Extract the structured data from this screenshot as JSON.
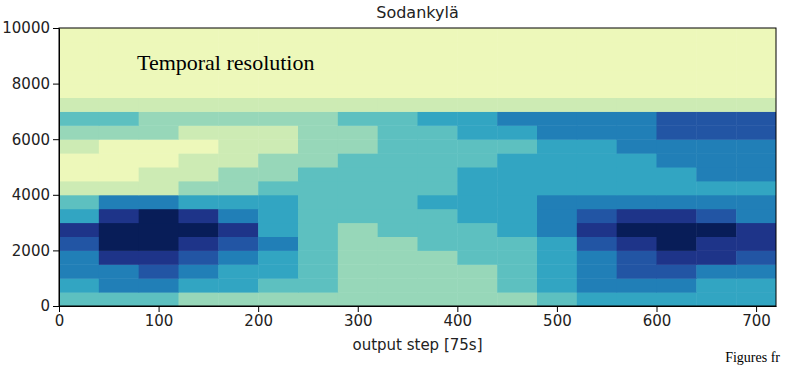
{
  "chart_data": {
    "type": "heatmap",
    "title": "Sodankylä",
    "xlabel": "output step [75s]",
    "annotations": [
      "Temporal resolution",
      "Figures fr"
    ],
    "xlim": [
      0,
      720
    ],
    "ylim": [
      0,
      10000
    ],
    "xticks": [
      0,
      100,
      200,
      300,
      400,
      500,
      600,
      700
    ],
    "yticks": [
      0,
      2000,
      4000,
      6000,
      8000,
      10000
    ],
    "x_edges": [
      0,
      40,
      80,
      120,
      160,
      200,
      240,
      280,
      320,
      360,
      400,
      440,
      480,
      520,
      560,
      600,
      640,
      680,
      720
    ],
    "y_edges": [
      0,
      500,
      1000,
      1500,
      2000,
      2500,
      3000,
      3500,
      4000,
      4500,
      5000,
      5500,
      6000,
      6500,
      7000,
      7500,
      8000,
      8500,
      9000,
      9500,
      10000
    ],
    "value_range": [
      0,
      9
    ],
    "cells": [
      [
        4,
        4,
        4,
        3,
        3,
        3,
        3,
        3,
        3,
        3,
        3,
        3,
        4,
        5,
        5,
        5,
        5,
        5
      ],
      [
        5,
        6,
        6,
        5,
        5,
        4,
        4,
        3,
        3,
        3,
        3,
        4,
        5,
        6,
        6,
        6,
        5,
        5
      ],
      [
        6,
        6,
        7,
        6,
        5,
        5,
        4,
        3,
        3,
        3,
        3,
        4,
        5,
        6,
        7,
        7,
        6,
        6
      ],
      [
        6,
        8,
        8,
        7,
        6,
        5,
        4,
        3,
        3,
        3,
        4,
        4,
        5,
        6,
        7,
        8,
        8,
        7
      ],
      [
        7,
        9,
        9,
        8,
        7,
        6,
        4,
        3,
        3,
        4,
        4,
        4,
        5,
        7,
        8,
        9,
        8,
        8
      ],
      [
        8,
        9,
        9,
        9,
        8,
        5,
        4,
        3,
        4,
        4,
        4,
        5,
        6,
        8,
        9,
        9,
        9,
        8
      ],
      [
        5,
        8,
        9,
        8,
        6,
        5,
        4,
        4,
        4,
        4,
        5,
        5,
        6,
        7,
        8,
        8,
        7,
        6
      ],
      [
        4,
        6,
        6,
        5,
        5,
        5,
        4,
        4,
        4,
        5,
        5,
        5,
        6,
        6,
        6,
        6,
        6,
        6
      ],
      [
        2,
        2,
        2,
        3,
        3,
        4,
        4,
        4,
        4,
        4,
        5,
        5,
        5,
        5,
        5,
        5,
        5,
        5
      ],
      [
        1,
        1,
        2,
        2,
        3,
        3,
        4,
        4,
        4,
        4,
        5,
        5,
        5,
        5,
        5,
        5,
        6,
        6
      ],
      [
        1,
        1,
        1,
        2,
        2,
        3,
        3,
        4,
        4,
        4,
        4,
        5,
        5,
        5,
        5,
        6,
        6,
        6
      ],
      [
        2,
        1,
        1,
        1,
        2,
        2,
        3,
        3,
        4,
        4,
        4,
        4,
        5,
        5,
        6,
        6,
        6,
        6
      ],
      [
        3,
        3,
        3,
        2,
        2,
        2,
        3,
        3,
        4,
        4,
        5,
        5,
        6,
        6,
        6,
        7,
        7,
        7
      ],
      [
        4,
        4,
        3,
        3,
        3,
        3,
        3,
        4,
        4,
        5,
        5,
        6,
        6,
        6,
        6,
        7,
        7,
        7
      ],
      [
        2,
        2,
        2,
        2,
        2,
        2,
        2,
        2,
        2,
        2,
        2,
        2,
        2,
        2,
        2,
        2,
        2,
        2
      ],
      [
        1,
        1,
        1,
        1,
        1,
        1,
        1,
        1,
        1,
        1,
        1,
        1,
        1,
        1,
        1,
        1,
        1,
        1
      ],
      [
        1,
        1,
        1,
        1,
        1,
        1,
        1,
        1,
        1,
        1,
        1,
        1,
        1,
        1,
        1,
        1,
        1,
        1
      ],
      [
        1,
        1,
        1,
        1,
        1,
        1,
        1,
        1,
        1,
        1,
        1,
        1,
        1,
        1,
        1,
        1,
        1,
        1
      ],
      [
        1,
        1,
        1,
        1,
        1,
        1,
        1,
        1,
        1,
        1,
        1,
        1,
        1,
        1,
        1,
        1,
        1,
        1
      ],
      [
        1,
        1,
        1,
        1,
        1,
        1,
        1,
        1,
        1,
        1,
        1,
        1,
        1,
        1,
        1,
        1,
        1,
        1
      ]
    ]
  }
}
